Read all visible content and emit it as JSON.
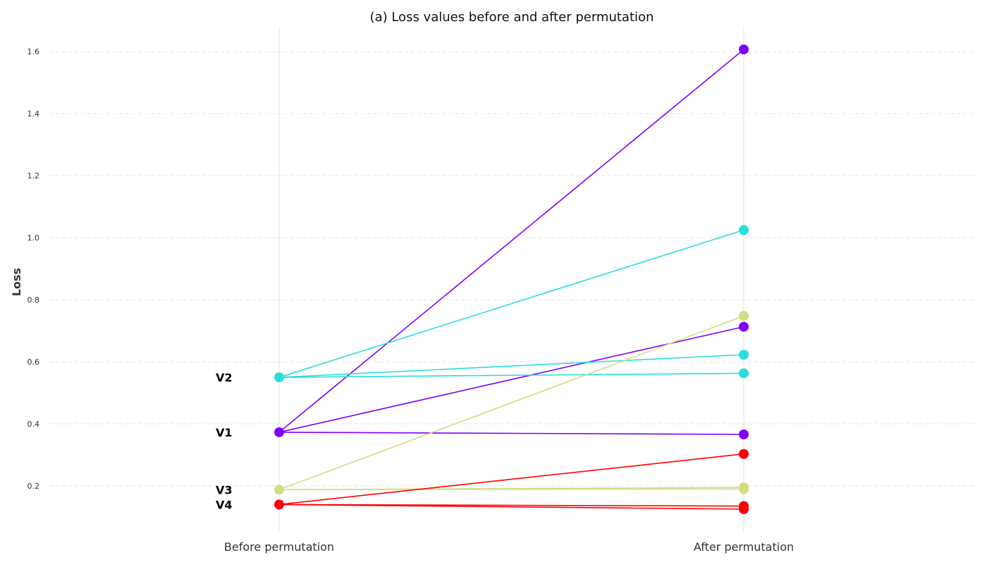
{
  "chart_data": {
    "type": "line",
    "title": "(a) Loss values before and after permutation",
    "xlabel": "",
    "ylabel": "Loss",
    "categories": [
      "Before permutation",
      "After permutation"
    ],
    "ylim": [
      0.05,
      1.68
    ],
    "yticks": [
      "0.2",
      "0.4",
      "0.6",
      "0.8",
      "1.0",
      "1.2",
      "1.4",
      "1.6"
    ],
    "grid": true,
    "legend": "none",
    "groups": [
      {
        "name": "V1",
        "color": "#7f00ff",
        "before": 0.373,
        "after": [
          1.607,
          0.713,
          0.366
        ]
      },
      {
        "name": "V2",
        "color": "#2adddd",
        "before": 0.55,
        "after": [
          1.025,
          0.623,
          0.563
        ]
      },
      {
        "name": "V3",
        "color": "#d4dd80",
        "before": 0.188,
        "after": [
          0.748,
          0.195,
          0.19
        ]
      },
      {
        "name": "V4",
        "color": "#ff0000",
        "before": 0.14,
        "after": [
          0.303,
          0.135,
          0.125
        ]
      }
    ]
  }
}
